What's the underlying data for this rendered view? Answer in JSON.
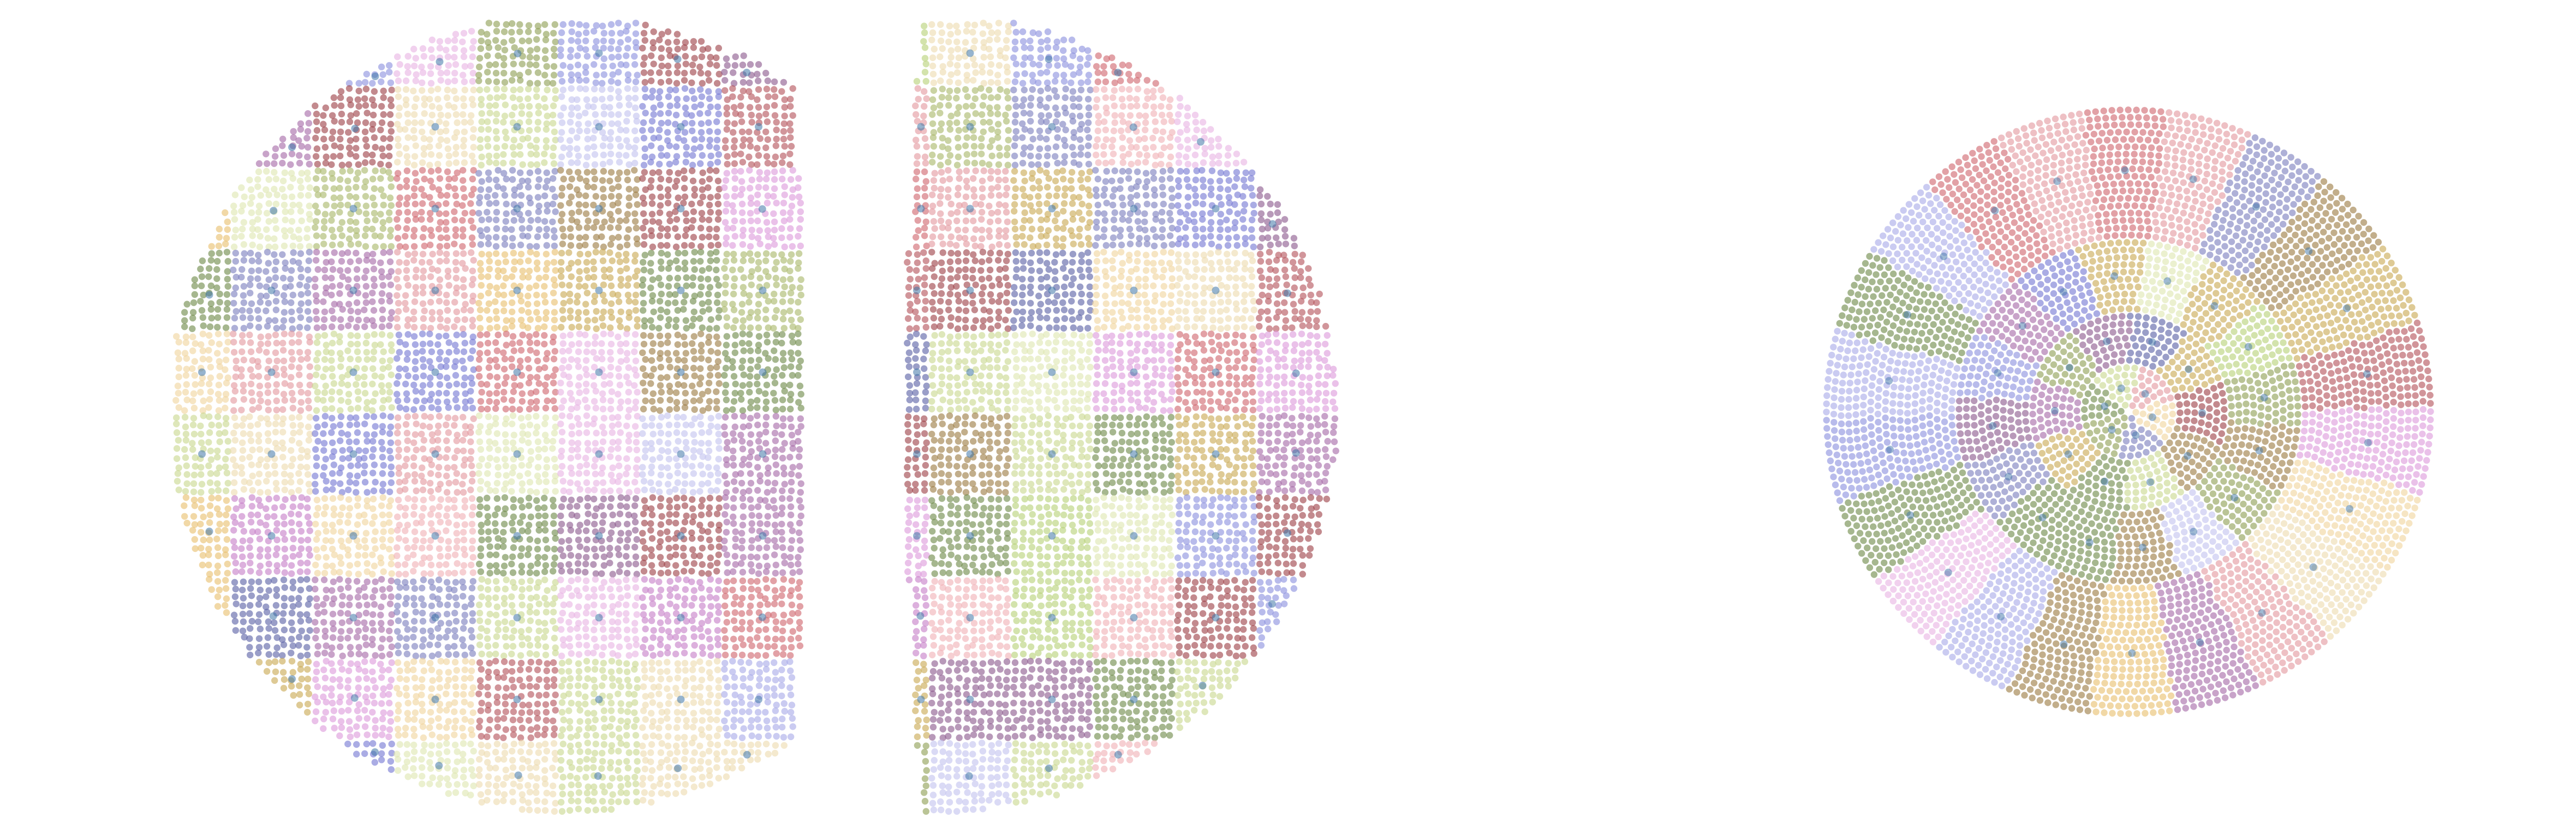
{
  "figure": {
    "panels": [
      {
        "id": "hemisphere-left",
        "kind": "half-lens",
        "side": "left"
      },
      {
        "id": "hemisphere-right",
        "kind": "half-lens",
        "side": "right"
      },
      {
        "id": "polar-disk",
        "kind": "disk"
      }
    ],
    "palette": [
      "#6f8a4a",
      "#8f9f55",
      "#a9b86a",
      "#c9d88f",
      "#dfe6b1",
      "#b8d279",
      "#7679d4",
      "#8d91df",
      "#a9abe8",
      "#c3c4ef",
      "#5c62a6",
      "#7c80be",
      "#9e4248",
      "#b5545c",
      "#d06870",
      "#e39aa0",
      "#f0b1b6",
      "#8c5a8e",
      "#a66aa8",
      "#c77fc8",
      "#dd9bdc",
      "#e8b4e3",
      "#9c7d43",
      "#c9a954",
      "#e8c070",
      "#f0d59e",
      "#eedbb0"
    ],
    "centroid_color": "#3f76a8",
    "point_alpha": 0.62
  }
}
